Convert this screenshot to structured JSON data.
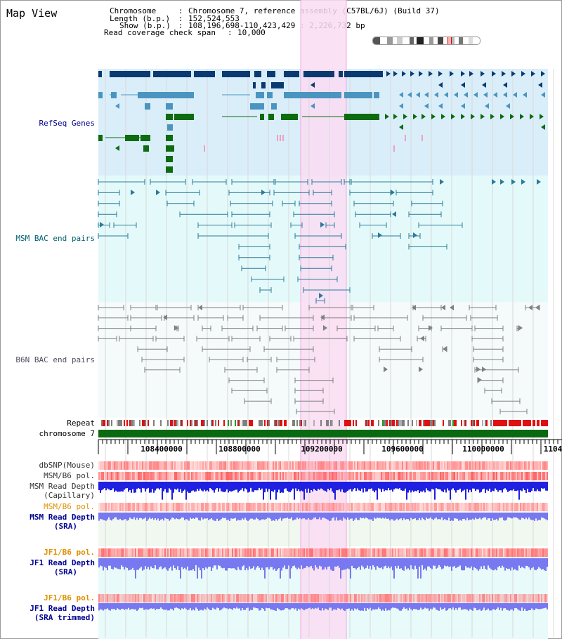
{
  "title": "Map View",
  "info": {
    "chromosome_key": "Chromosome",
    "chromosome_val": "Chromosome 7, reference assembly (C57BL/6J) (Build 37)",
    "length_key": "Length (b.p.)",
    "length_val": "152,524,553",
    "show_key": "Show (b.p.)",
    "show_val": "108,196,698-110,423,429 : 2,226,732 bp",
    "span_key": "Read coverage check span",
    "span_val": "10,000"
  },
  "tracks": {
    "refseq": "RefSeq Genes",
    "msm_bac": "MSM BAC end pairs",
    "b6n_bac": "B6N BAC end pairs",
    "repeat": "Repeat",
    "chromosome": "chromosome 7",
    "dbsnp": "dbSNP(Mouse)",
    "msm_b6_pol": "MSM/B6 pol.",
    "msm_read_depth_cap_1": "MSM Read Depth",
    "msm_read_depth_cap_2": "(Capillary)",
    "msm_b6_pol_2": "MSM/B6 pol.",
    "msm_read_depth_sra_1": "MSM Read Depth",
    "msm_read_depth_sra_2": "(SRA)",
    "jf1_b6_pol": "JF1/B6 pol.",
    "jf1_read_depth_sra_1": "JF1 Read Depth",
    "jf1_read_depth_sra_2": "(SRA)",
    "jf1_b6_pol_2": "JF1/B6 pol.",
    "jf1_read_depth_trim_1": "JF1 Read Depth",
    "jf1_read_depth_trim_2": "(SRA trimmed)"
  },
  "axis_ticks": [
    "108400000",
    "108800000",
    "109200000",
    "109600000",
    "110000000",
    "1104"
  ],
  "colors": {
    "refseq_bg": "#daeefa",
    "msm_bg": "#e4fafa",
    "b6n_bg": "#f5fafb",
    "highlight": "#fadcf2",
    "gene_dark": "#0b3a70",
    "gene_mid": "#4a95c0",
    "gene_green": "#0e6b10",
    "bac_teal": "#2a7a9a",
    "bac_gray": "#808080",
    "chromosome": "#0a6a12",
    "label_blue": "#000090",
    "label_msm": "#006070",
    "label_orange": "#e09000",
    "depth_blue": "#2020e0",
    "depth_light": "#7878f0"
  }
}
